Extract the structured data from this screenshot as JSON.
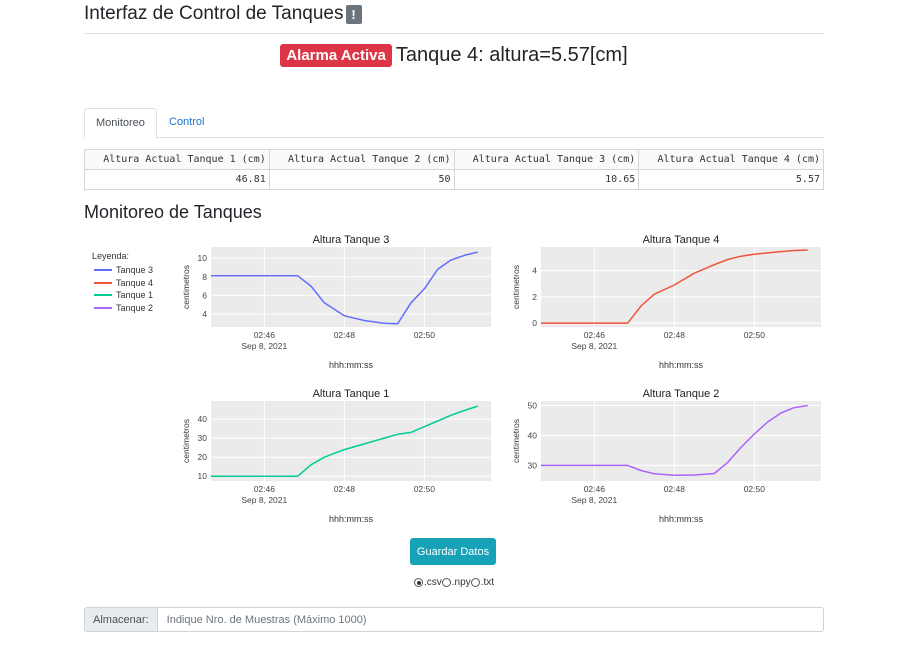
{
  "header": {
    "title": "Interfaz de Control de Tanques",
    "info_badge": "!"
  },
  "alarm": {
    "badge": "Alarma Activa",
    "message": "Tanque 4: altura=5.57[cm]"
  },
  "tabs": [
    {
      "label": "Monitoreo",
      "active": true
    },
    {
      "label": "Control",
      "active": false
    }
  ],
  "table": {
    "headers": [
      "Altura Actual Tanque 1 (cm)",
      "Altura Actual Tanque 2 (cm)",
      "Altura Actual Tanque 3 (cm)",
      "Altura Actual Tanque 4 (cm)"
    ],
    "values": [
      "46.81",
      "50",
      "10.65",
      "5.57"
    ]
  },
  "section_title": "Monitoreo de Tanques",
  "legend": {
    "title": "Leyenda:",
    "items": [
      {
        "label": "Tanque 3",
        "color": "#636efa"
      },
      {
        "label": "Tanque 4",
        "color": "#ef553b"
      },
      {
        "label": "Tanque 1",
        "color": "#00cc96"
      },
      {
        "label": "Tanque 2",
        "color": "#ab63fa"
      }
    ]
  },
  "chart_data": [
    {
      "type": "line",
      "title": "Altura Tanque 3",
      "xlabel": "hhh:mm:ss",
      "ylabel": "centimetros",
      "color": "#636efa",
      "x_ticks": [
        "02:46",
        "02:48",
        "02:50"
      ],
      "x_date_label": "Sep 8, 2021",
      "y_ticks": [
        4,
        6,
        8,
        10
      ],
      "ylim": [
        2.6,
        11.2
      ],
      "x": [
        "02:44:40",
        "02:46:50",
        "02:47:10",
        "02:47:30",
        "02:48:00",
        "02:48:30",
        "02:49:00",
        "02:49:20",
        "02:49:40",
        "02:50:00",
        "02:50:20",
        "02:50:40",
        "02:51:00",
        "02:51:20"
      ],
      "y": [
        8.1,
        8.1,
        7.0,
        5.2,
        3.8,
        3.3,
        3.0,
        2.95,
        5.2,
        6.7,
        8.8,
        9.8,
        10.3,
        10.65
      ]
    },
    {
      "type": "line",
      "title": "Altura Tanque 4",
      "xlabel": "hhh:mm:ss",
      "ylabel": "centimetros",
      "color": "#ef553b",
      "x_ticks": [
        "02:46",
        "02:48",
        "02:50"
      ],
      "x_date_label": "Sep 8, 2021",
      "y_ticks": [
        0,
        2,
        4
      ],
      "ylim": [
        -0.3,
        5.8
      ],
      "x": [
        "02:44:40",
        "02:46:50",
        "02:47:10",
        "02:47:30",
        "02:48:00",
        "02:48:30",
        "02:49:00",
        "02:49:20",
        "02:49:40",
        "02:50:00",
        "02:50:20",
        "02:50:40",
        "02:51:00",
        "02:51:20"
      ],
      "y": [
        0,
        0,
        1.3,
        2.2,
        2.9,
        3.8,
        4.45,
        4.85,
        5.1,
        5.25,
        5.35,
        5.45,
        5.53,
        5.57
      ]
    },
    {
      "type": "line",
      "title": "Altura Tanque 1",
      "xlabel": "hhh:mm:ss",
      "ylabel": "centimetros",
      "color": "#00cc96",
      "x_ticks": [
        "02:46",
        "02:48",
        "02:50"
      ],
      "x_date_label": "Sep 8, 2021",
      "y_ticks": [
        10,
        20,
        30,
        40
      ],
      "ylim": [
        7.5,
        49.5
      ],
      "x": [
        "02:44:40",
        "02:46:50",
        "02:47:10",
        "02:47:30",
        "02:48:00",
        "02:48:30",
        "02:49:00",
        "02:49:20",
        "02:49:40",
        "02:50:00",
        "02:50:20",
        "02:50:40",
        "02:51:00",
        "02:51:20"
      ],
      "y": [
        10,
        10,
        16,
        20,
        24,
        27,
        30,
        32,
        33,
        36,
        39,
        42,
        44.5,
        46.81
      ]
    },
    {
      "type": "line",
      "title": "Altura Tanque 2",
      "xlabel": "hhh:mm:ss",
      "ylabel": "centimetros",
      "color": "#ab63fa",
      "x_ticks": [
        "02:46",
        "02:48",
        "02:50"
      ],
      "x_date_label": "Sep 8, 2021",
      "y_ticks": [
        30,
        40,
        50
      ],
      "ylim": [
        24.8,
        51.5
      ],
      "x": [
        "02:44:40",
        "02:46:50",
        "02:47:10",
        "02:47:30",
        "02:48:00",
        "02:48:30",
        "02:49:00",
        "02:49:20",
        "02:49:40",
        "02:50:00",
        "02:50:20",
        "02:50:40",
        "02:51:00",
        "02:51:20"
      ],
      "y": [
        30,
        30,
        28.3,
        27.2,
        26.7,
        26.8,
        27.3,
        31,
        36,
        40.5,
        44.5,
        47.5,
        49.3,
        50
      ]
    }
  ],
  "save_button": "Guardar Datos",
  "format_options": [
    {
      "label": ".csv",
      "checked": true
    },
    {
      "label": ".npy",
      "checked": false
    },
    {
      "label": ".txt",
      "checked": false
    }
  ],
  "store": {
    "label": "Almacenar:",
    "placeholder": "Indique Nro. de Muestras (Máximo 1000)",
    "value": ""
  }
}
